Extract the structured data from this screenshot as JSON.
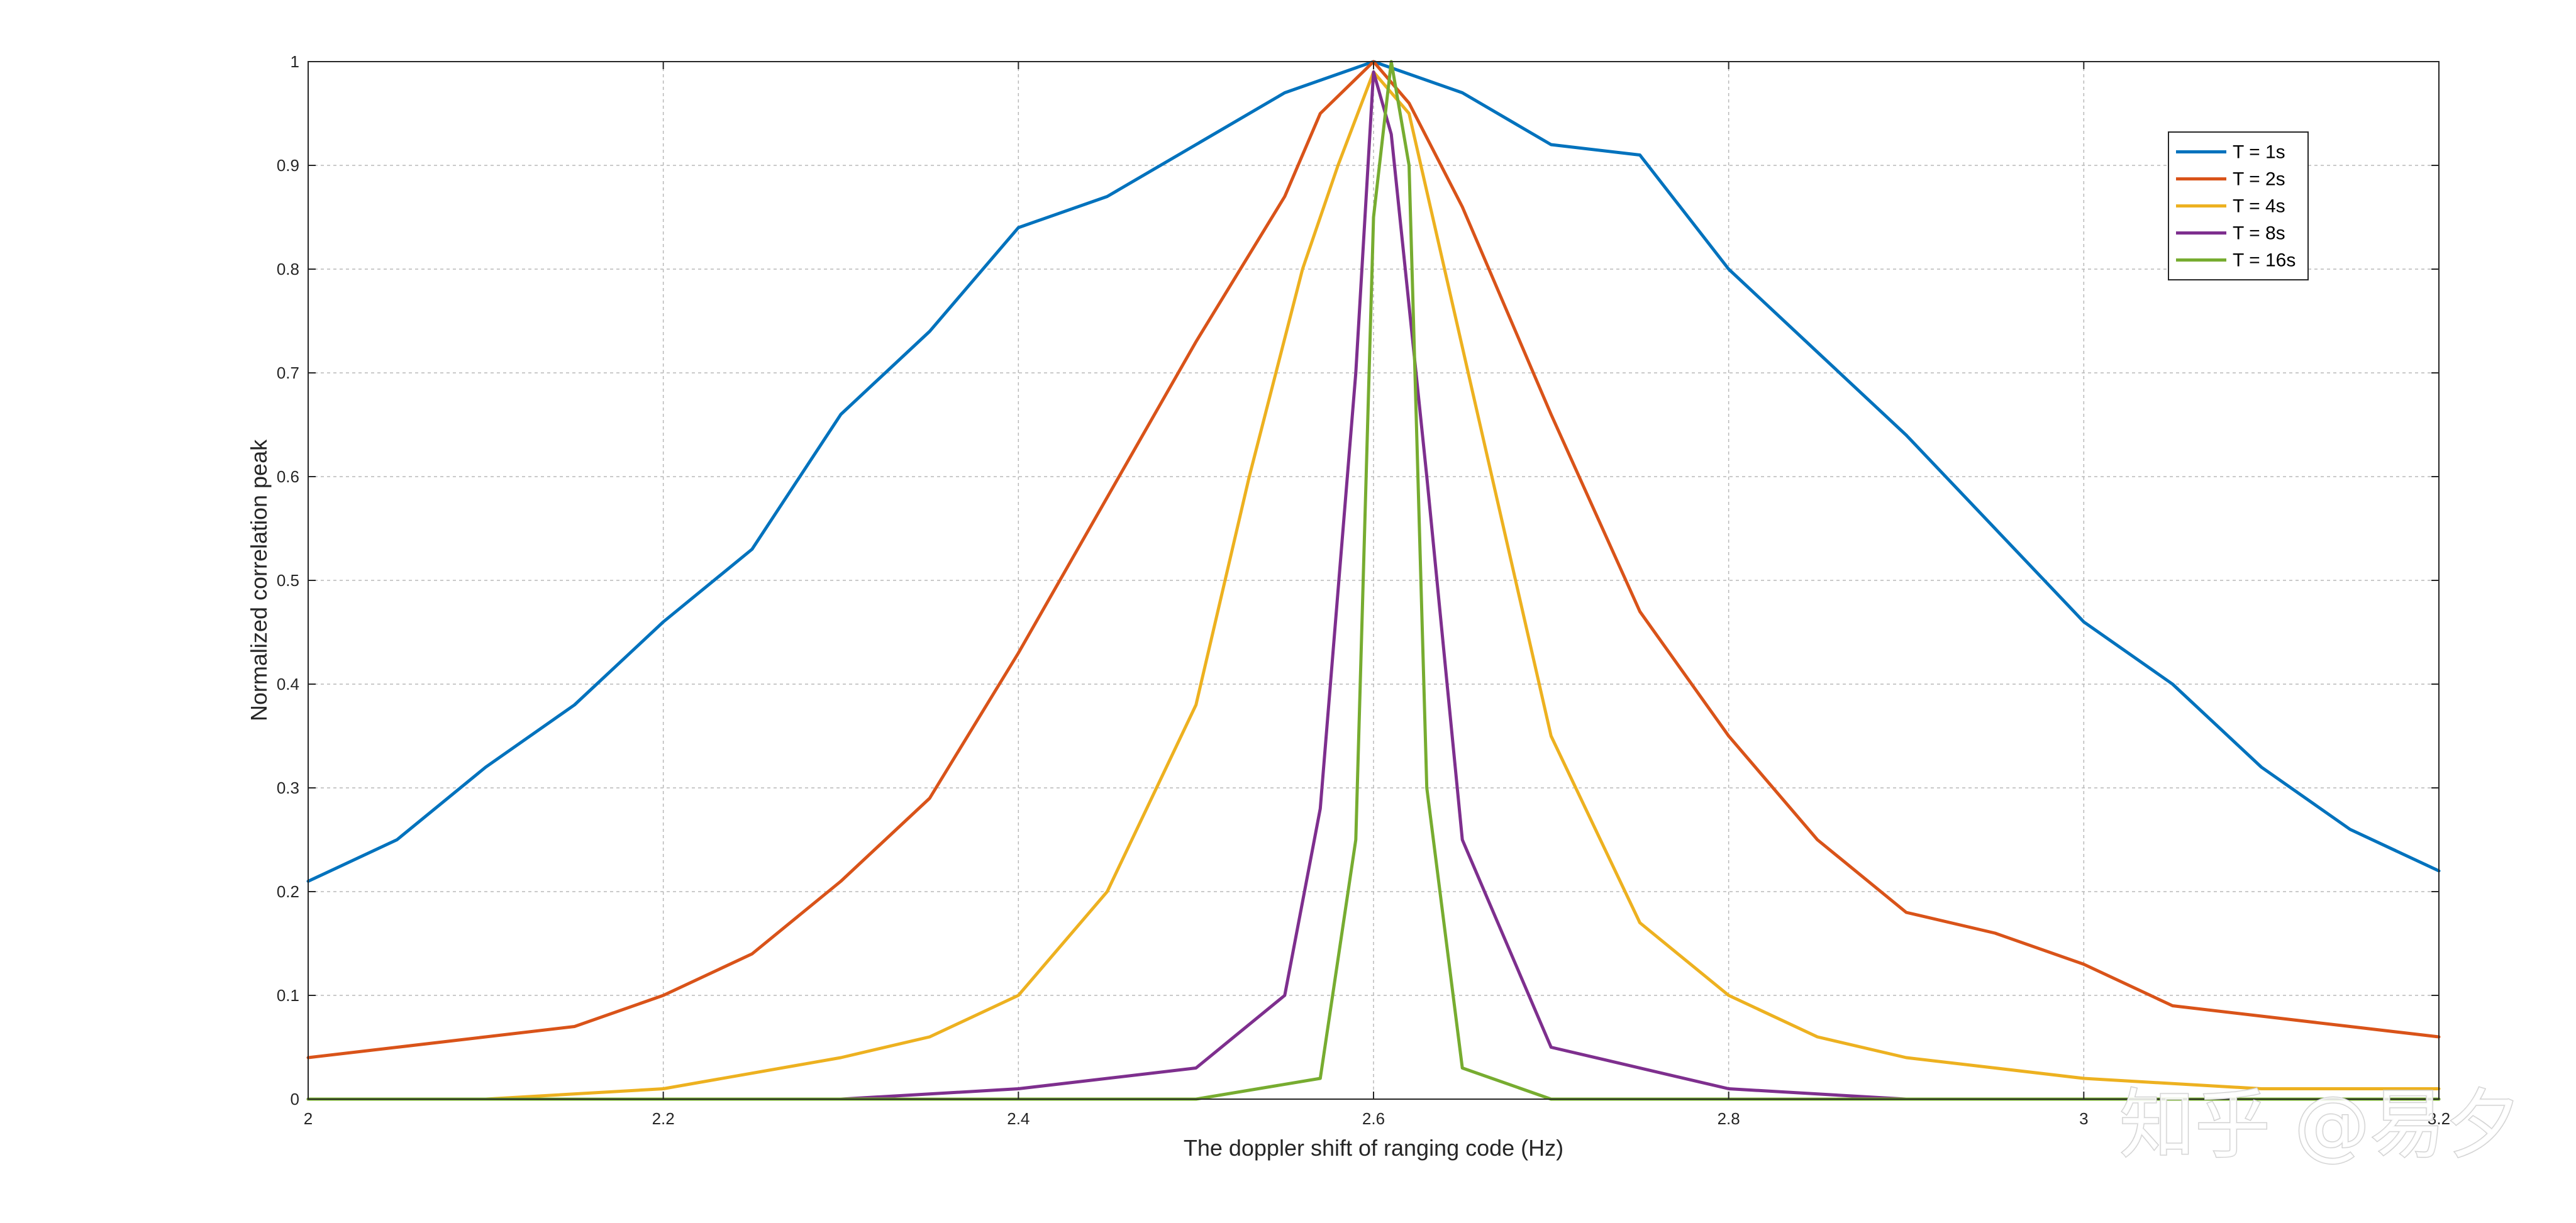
{
  "chart_data": {
    "type": "line",
    "title": "",
    "xlabel": "The doppler shift of ranging code (Hz)",
    "ylabel": "Normalized correlation peak",
    "xlim": [
      2,
      3.2
    ],
    "ylim": [
      0,
      1
    ],
    "xticks": [
      2,
      2.2,
      2.4,
      2.6,
      2.8,
      3,
      3.2
    ],
    "xtick_labels": [
      "2",
      "2.2",
      "2.4",
      "2.6",
      "2.8",
      "3",
      "3.2"
    ],
    "yticks": [
      0,
      0.1,
      0.2,
      0.3,
      0.4,
      0.5,
      0.6,
      0.7,
      0.8,
      0.9,
      1
    ],
    "ytick_labels": [
      "0",
      "0.1",
      "0.2",
      "0.3",
      "0.4",
      "0.5",
      "0.6",
      "0.7",
      "0.8",
      "0.9",
      "1"
    ],
    "grid": true,
    "legend_position": "top-right",
    "series": [
      {
        "name": "T = 1s",
        "color": "#0072BD",
        "x": [
          2,
          2.05,
          2.1,
          2.15,
          2.2,
          2.25,
          2.3,
          2.35,
          2.4,
          2.45,
          2.5,
          2.55,
          2.6,
          2.65,
          2.7,
          2.75,
          2.8,
          2.85,
          2.9,
          2.95,
          3,
          3.05,
          3.1,
          3.15,
          3.2
        ],
        "y": [
          0.21,
          0.25,
          0.32,
          0.38,
          0.46,
          0.53,
          0.66,
          0.74,
          0.84,
          0.87,
          0.92,
          0.97,
          1.0,
          0.97,
          0.92,
          0.91,
          0.8,
          0.72,
          0.64,
          0.55,
          0.46,
          0.4,
          0.32,
          0.26,
          0.22
        ]
      },
      {
        "name": "T = 2s",
        "color": "#D95319",
        "x": [
          2,
          2.05,
          2.1,
          2.15,
          2.2,
          2.25,
          2.3,
          2.35,
          2.4,
          2.45,
          2.5,
          2.55,
          2.57,
          2.6,
          2.62,
          2.65,
          2.7,
          2.75,
          2.8,
          2.85,
          2.9,
          2.95,
          3,
          3.05,
          3.1,
          3.15,
          3.2
        ],
        "y": [
          0.04,
          0.05,
          0.06,
          0.07,
          0.1,
          0.14,
          0.21,
          0.29,
          0.43,
          0.58,
          0.73,
          0.87,
          0.95,
          1.0,
          0.96,
          0.86,
          0.66,
          0.47,
          0.35,
          0.25,
          0.18,
          0.16,
          0.13,
          0.09,
          0.08,
          0.07,
          0.06
        ]
      },
      {
        "name": "T = 4s",
        "color": "#EDB120",
        "x": [
          2,
          2.1,
          2.2,
          2.3,
          2.35,
          2.4,
          2.45,
          2.5,
          2.53,
          2.56,
          2.58,
          2.6,
          2.62,
          2.64,
          2.66,
          2.7,
          2.75,
          2.8,
          2.85,
          2.9,
          2.95,
          3,
          3.1,
          3.2
        ],
        "y": [
          0.0,
          0.0,
          0.01,
          0.04,
          0.06,
          0.1,
          0.2,
          0.38,
          0.6,
          0.8,
          0.9,
          0.99,
          0.95,
          0.8,
          0.65,
          0.35,
          0.17,
          0.1,
          0.06,
          0.04,
          0.03,
          0.02,
          0.01,
          0.01
        ]
      },
      {
        "name": "T = 8s",
        "color": "#7E2F8E",
        "x": [
          2,
          2.3,
          2.4,
          2.5,
          2.55,
          2.57,
          2.59,
          2.6,
          2.61,
          2.63,
          2.65,
          2.7,
          2.8,
          2.9,
          3.2
        ],
        "y": [
          0.0,
          0.0,
          0.01,
          0.03,
          0.1,
          0.28,
          0.7,
          0.99,
          0.93,
          0.6,
          0.25,
          0.05,
          0.01,
          0.0,
          0.0
        ]
      },
      {
        "name": "T = 16s",
        "color": "#77AC30",
        "x": [
          2,
          2.5,
          2.57,
          2.59,
          2.6,
          2.61,
          2.62,
          2.63,
          2.65,
          2.7,
          3.2
        ],
        "y": [
          0.0,
          0.0,
          0.02,
          0.25,
          0.85,
          1.0,
          0.9,
          0.3,
          0.03,
          0.0,
          0.0
        ]
      }
    ]
  },
  "watermark": {
    "text": "知乎 @易夕"
  }
}
